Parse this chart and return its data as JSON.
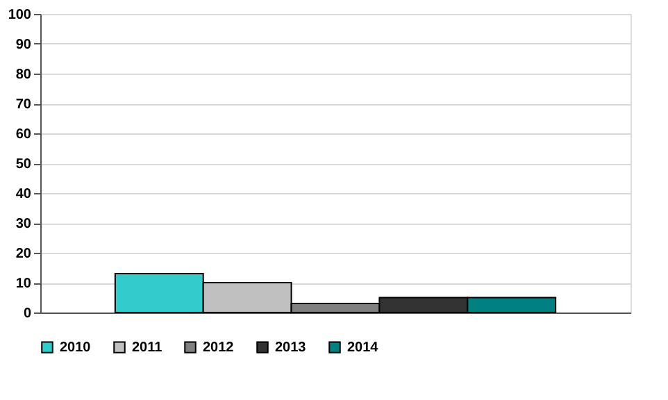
{
  "chart_data": {
    "type": "bar",
    "categories": [
      null
    ],
    "series": [
      {
        "name": "2010",
        "color": "#33cccc",
        "values": [
          13
        ]
      },
      {
        "name": "2011",
        "color": "#c0c0c0",
        "values": [
          10
        ]
      },
      {
        "name": "2012",
        "color": "#808080",
        "values": [
          3
        ]
      },
      {
        "name": "2013",
        "color": "#333333",
        "values": [
          5
        ]
      },
      {
        "name": "2014",
        "color": "#008080",
        "values": [
          5
        ]
      }
    ],
    "ylim": [
      0,
      100
    ],
    "yticks": [
      0,
      10,
      20,
      30,
      40,
      50,
      60,
      70,
      80,
      90,
      100
    ],
    "grid": "y",
    "legend": "bottom"
  }
}
